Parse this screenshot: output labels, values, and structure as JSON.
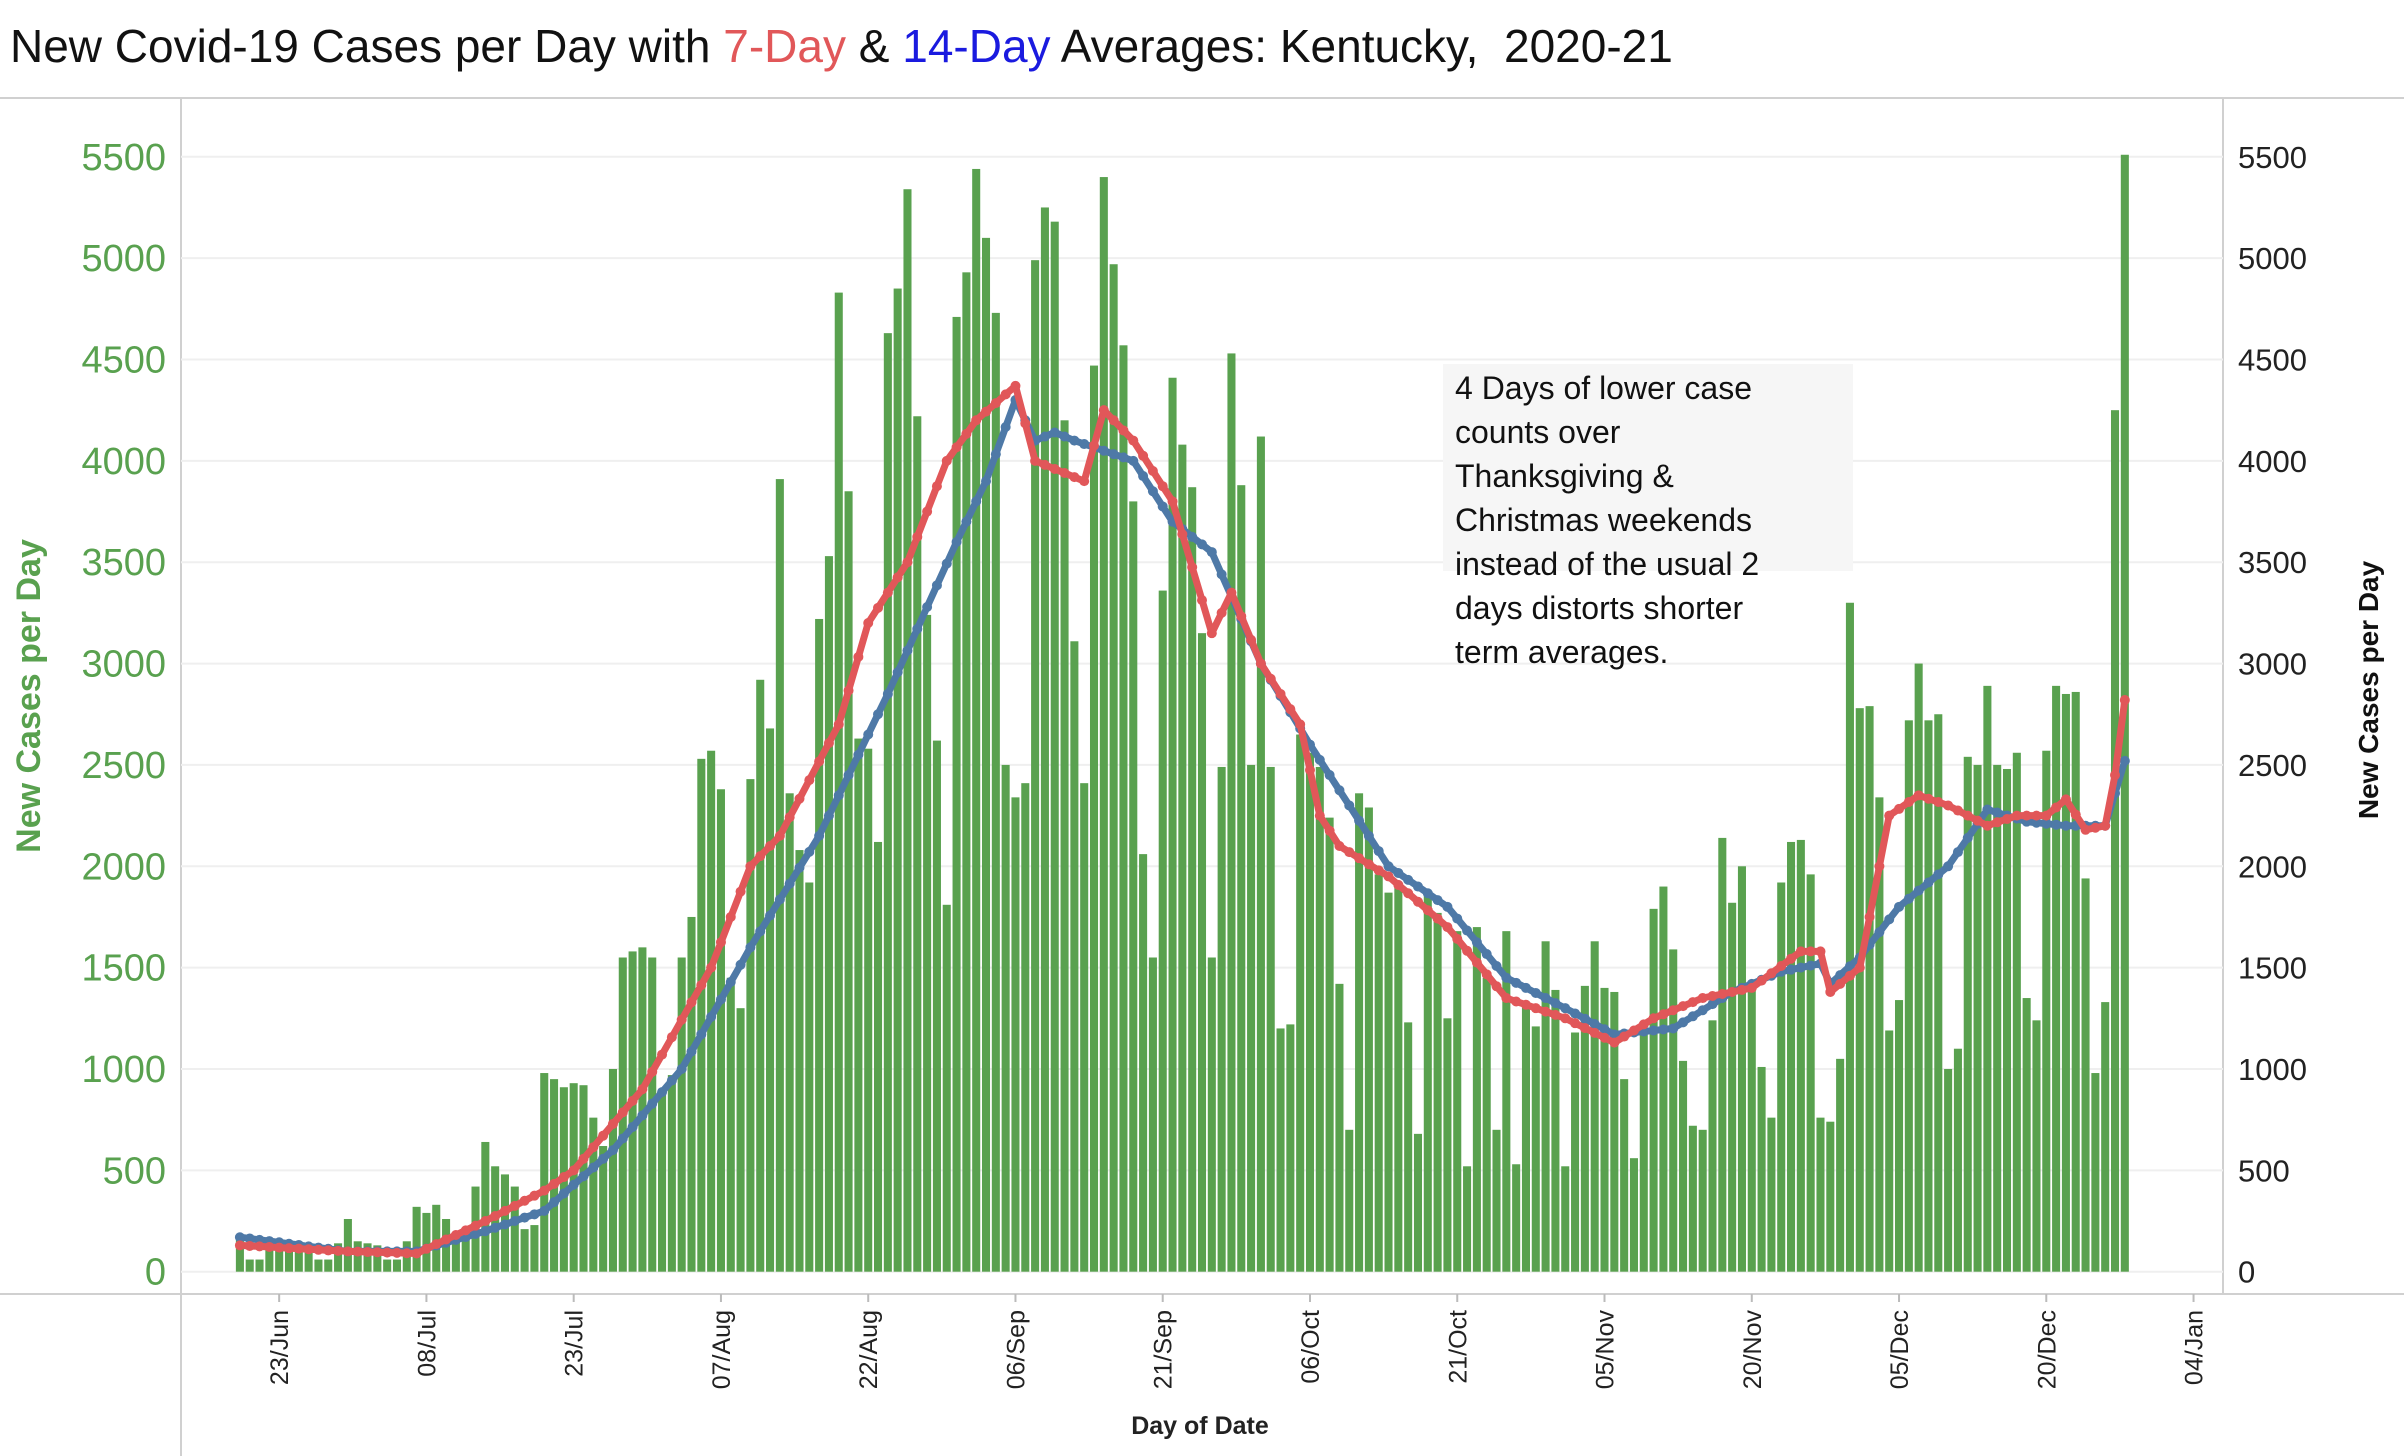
{
  "chart_data": {
    "type": "bar",
    "title_parts": [
      "New Covid-19 Cases per Day with ",
      " & ",
      " Averages: Kentucky,  2020-21"
    ],
    "ylabel": "New Cases per Day",
    "y2label": "New Cases per Day",
    "xlabel": "Day of Date",
    "annotation": [
      "4 Days of lower case",
      "counts over",
      "Thanksgiving &",
      "Christmas weekends",
      "instead of the usual 2",
      "days distorts shorter",
      "term averages."
    ],
    "x": [
      "19/Jun",
      "20/Jun",
      "21/Jun",
      "22/Jun",
      "23/Jun",
      "24/Jun",
      "25/Jun",
      "26/Jun",
      "27/Jun",
      "28/Jun",
      "29/Jun",
      "30/Jun",
      "01/Jul",
      "02/Jul",
      "03/Jul",
      "04/Jul",
      "05/Jul",
      "06/Jul",
      "07/Jul",
      "08/Jul",
      "09/Jul",
      "10/Jul",
      "11/Jul",
      "12/Jul",
      "13/Jul",
      "14/Jul",
      "15/Jul",
      "16/Jul",
      "17/Jul",
      "18/Jul",
      "19/Jul",
      "20/Jul",
      "21/Jul",
      "22/Jul",
      "23/Jul",
      "24/Jul",
      "25/Jul",
      "26/Jul",
      "27/Jul",
      "28/Jul",
      "29/Jul",
      "30/Jul",
      "31/Jul",
      "01/Aug",
      "02/Aug",
      "03/Aug",
      "04/Aug",
      "05/Aug",
      "06/Aug",
      "07/Aug",
      "08/Aug",
      "09/Aug",
      "10/Aug",
      "11/Aug",
      "12/Aug",
      "13/Aug",
      "14/Aug",
      "15/Aug",
      "16/Aug",
      "17/Aug",
      "18/Aug",
      "19/Aug",
      "20/Aug",
      "21/Aug",
      "22/Aug",
      "23/Aug",
      "24/Aug",
      "25/Aug",
      "26/Aug",
      "27/Aug",
      "28/Aug",
      "29/Aug",
      "30/Aug",
      "31/Aug",
      "01/Sep",
      "02/Sep",
      "03/Sep",
      "04/Sep",
      "05/Sep",
      "06/Sep",
      "07/Sep",
      "08/Sep",
      "09/Sep",
      "10/Sep",
      "11/Sep",
      "12/Sep",
      "13/Sep",
      "14/Sep",
      "15/Sep",
      "16/Sep",
      "17/Sep",
      "18/Sep",
      "19/Sep",
      "20/Sep",
      "21/Sep",
      "22/Sep",
      "23/Sep",
      "24/Sep",
      "25/Sep",
      "26/Sep",
      "27/Sep",
      "28/Sep",
      "29/Sep",
      "30/Sep",
      "01/Oct",
      "02/Oct",
      "03/Oct",
      "04/Oct",
      "05/Oct",
      "06/Oct",
      "07/Oct",
      "08/Oct",
      "09/Oct",
      "10/Oct",
      "11/Oct",
      "12/Oct",
      "13/Oct",
      "14/Oct",
      "15/Oct",
      "16/Oct",
      "17/Oct",
      "18/Oct",
      "19/Oct",
      "20/Oct",
      "21/Oct",
      "22/Oct",
      "23/Oct",
      "24/Oct",
      "25/Oct",
      "26/Oct",
      "27/Oct",
      "28/Oct",
      "29/Oct",
      "30/Oct",
      "31/Oct",
      "01/Nov",
      "02/Nov",
      "03/Nov",
      "04/Nov",
      "05/Nov",
      "06/Nov",
      "07/Nov",
      "08/Nov",
      "09/Nov",
      "10/Nov",
      "11/Nov",
      "12/Nov",
      "13/Nov",
      "14/Nov",
      "15/Nov",
      "16/Nov",
      "17/Nov",
      "18/Nov",
      "19/Nov",
      "20/Nov",
      "21/Nov",
      "22/Nov",
      "23/Nov",
      "24/Nov",
      "25/Nov",
      "26/Nov",
      "27/Nov",
      "28/Nov",
      "29/Nov",
      "30/Nov",
      "01/Dec",
      "02/Dec",
      "03/Dec",
      "04/Dec",
      "05/Dec",
      "06/Dec",
      "07/Dec",
      "08/Dec",
      "09/Dec",
      "10/Dec",
      "11/Dec",
      "12/Dec",
      "13/Dec",
      "14/Dec",
      "15/Dec",
      "16/Dec",
      "17/Dec",
      "18/Dec",
      "19/Dec",
      "20/Dec",
      "21/Dec",
      "22/Dec",
      "23/Dec",
      "24/Dec",
      "25/Dec",
      "26/Dec",
      "27/Dec",
      "28/Dec"
    ],
    "values": [
      170,
      60,
      60,
      120,
      150,
      130,
      120,
      100,
      60,
      60,
      140,
      260,
      150,
      140,
      130,
      60,
      60,
      150,
      320,
      290,
      330,
      260,
      170,
      160,
      420,
      640,
      520,
      480,
      420,
      210,
      230,
      980,
      950,
      910,
      930,
      920,
      760,
      620,
      1000,
      1550,
      1580,
      1600,
      1550,
      900,
      970,
      1550,
      1750,
      2530,
      2570,
      2380,
      1450,
      1300,
      2430,
      2920,
      2680,
      3910,
      2360,
      2080,
      1920,
      3220,
      3530,
      4830,
      3850,
      2630,
      2580,
      2120,
      4630,
      4850,
      5340,
      4220,
      3240,
      2620,
      1810,
      4710,
      4930,
      5440,
      5100,
      4730,
      2500,
      2340,
      2410,
      4990,
      5250,
      5180,
      4200,
      3110,
      2410,
      4470,
      5400,
      4970,
      4570,
      3800,
      2060,
      1550,
      3360,
      4410,
      4080,
      3870,
      3150,
      1550,
      2490,
      4530,
      3880,
      2500,
      4120,
      2490,
      1200,
      1220,
      2650,
      2560,
      2490,
      2240,
      1420,
      700,
      2360,
      2290,
      1960,
      1870,
      1900,
      1230,
      680,
      1880,
      1770,
      1250,
      1680,
      520,
      1700,
      1450,
      700,
      1680,
      530,
      1320,
      1210,
      1630,
      1390,
      520,
      1180,
      1410,
      1630,
      1400,
      1380,
      950,
      560,
      1170,
      1790,
      1900,
      1590,
      1040,
      720,
      700,
      1240,
      2140,
      1820,
      2000,
      1420,
      1010,
      760,
      1920,
      2120,
      2130,
      1960,
      760,
      740,
      1050,
      3300,
      2780,
      2790,
      2340,
      1190,
      1340,
      2720,
      3000,
      2720,
      2750,
      1000,
      1100,
      2540,
      2500,
      2890,
      2500,
      2480,
      2560,
      1350,
      1240,
      2570,
      2890,
      2850,
      2860,
      1940,
      980,
      1330,
      4250,
      5510
    ],
    "color": "#59a14f",
    "lines": [
      {
        "name": "7-Day",
        "color": "#e15759",
        "values": [
          130,
          127,
          125,
          122,
          119,
          116,
          114,
          111,
          108,
          105,
          103,
          100,
          99,
          97,
          96,
          94,
          93,
          91,
          90,
          113,
          136,
          159,
          181,
          204,
          227,
          250,
          275,
          300,
          325,
          350,
          375,
          400,
          433,
          467,
          500,
          557,
          614,
          671,
          729,
          786,
          843,
          900,
          986,
          1071,
          1157,
          1243,
          1329,
          1414,
          1500,
          1625,
          1750,
          1875,
          2000,
          2050,
          2100,
          2150,
          2242,
          2333,
          2425,
          2517,
          2608,
          2700,
          2867,
          3033,
          3200,
          3275,
          3350,
          3425,
          3500,
          3625,
          3750,
          3875,
          4000,
          4067,
          4133,
          4200,
          4243,
          4285,
          4328,
          4370,
          4185,
          4000,
          3980,
          3960,
          3940,
          3920,
          3900,
          4075,
          4250,
          4200,
          4150,
          4100,
          4025,
          3950,
          3875,
          3800,
          3638,
          3475,
          3313,
          3150,
          3250,
          3350,
          3233,
          3117,
          3000,
          2925,
          2850,
          2775,
          2700,
          2475,
          2250,
          2175,
          2100,
          2070,
          2040,
          2010,
          1980,
          1950,
          1908,
          1867,
          1825,
          1783,
          1742,
          1700,
          1642,
          1583,
          1525,
          1467,
          1408,
          1350,
          1333,
          1317,
          1300,
          1283,
          1267,
          1250,
          1226,
          1202,
          1178,
          1154,
          1130,
          1160,
          1190,
          1220,
          1250,
          1270,
          1290,
          1310,
          1330,
          1350,
          1360,
          1370,
          1380,
          1390,
          1400,
          1436,
          1472,
          1508,
          1544,
          1580,
          1580,
          1580,
          1380,
          1420,
          1460,
          1500,
          1750,
          2000,
          2250,
          2283,
          2317,
          2350,
          2333,
          2317,
          2300,
          2275,
          2250,
          2225,
          2200,
          2217,
          2233,
          2250,
          2250,
          2250,
          2250,
          2290,
          2330,
          2255,
          2180,
          2190,
          2200,
          2450,
          2820
        ]
      },
      {
        "name": "14-Day",
        "color": "#4e79a7",
        "values": [
          170,
          164,
          157,
          151,
          145,
          138,
          132,
          125,
          119,
          113,
          106,
          100,
          100,
          100,
          100,
          100,
          100,
          100,
          100,
          114,
          129,
          143,
          157,
          171,
          186,
          200,
          217,
          233,
          250,
          267,
          283,
          300,
          343,
          386,
          429,
          471,
          514,
          557,
          600,
          657,
          714,
          771,
          829,
          886,
          943,
          1000,
          1086,
          1171,
          1257,
          1343,
          1429,
          1514,
          1600,
          1679,
          1757,
          1836,
          1914,
          1993,
          2071,
          2150,
          2250,
          2350,
          2450,
          2550,
          2650,
          2750,
          2850,
          2957,
          3064,
          3171,
          3279,
          3386,
          3493,
          3600,
          3700,
          3800,
          3900,
          4033,
          4167,
          4300,
          4200,
          4100,
          4120,
          4140,
          4120,
          4100,
          4083,
          4067,
          4050,
          4033,
          4017,
          4000,
          3925,
          3850,
          3775,
          3700,
          3663,
          3625,
          3588,
          3550,
          3440,
          3330,
          3220,
          3110,
          3000,
          2920,
          2840,
          2760,
          2680,
          2600,
          2525,
          2450,
          2375,
          2300,
          2225,
          2150,
          2075,
          2000,
          1967,
          1933,
          1900,
          1867,
          1833,
          1800,
          1742,
          1683,
          1625,
          1567,
          1508,
          1450,
          1425,
          1400,
          1375,
          1350,
          1325,
          1300,
          1274,
          1248,
          1222,
          1196,
          1170,
          1175,
          1180,
          1185,
          1190,
          1195,
          1200,
          1230,
          1260,
          1290,
          1320,
          1350,
          1380,
          1400,
          1420,
          1440,
          1460,
          1480,
          1490,
          1500,
          1510,
          1520,
          1420,
          1463,
          1507,
          1550,
          1613,
          1675,
          1738,
          1800,
          1840,
          1880,
          1920,
          1960,
          2000,
          2070,
          2140,
          2210,
          2280,
          2265,
          2250,
          2235,
          2220,
          2215,
          2210,
          2205,
          2200,
          2200,
          2200,
          2200,
          2200,
          2360,
          2520
        ]
      }
    ],
    "xlim": [
      "13/Jun",
      "07/Jan"
    ],
    "xticks": [
      "23/Jun",
      "08/Jul",
      "23/Jul",
      "07/Aug",
      "22/Aug",
      "06/Sep",
      "21/Sep",
      "06/Oct",
      "21/Oct",
      "05/Nov",
      "20/Nov",
      "05/Dec",
      "20/Dec",
      "04/Jan"
    ],
    "ylim": [
      -110,
      5790
    ],
    "yticks": [
      0,
      500,
      1000,
      1500,
      2000,
      2500,
      3000,
      3500,
      4000,
      4500,
      5000,
      5500
    ],
    "y2lim": [
      -110,
      5790
    ],
    "y2ticks": [
      0,
      500,
      1000,
      1500,
      2000,
      2500,
      3000,
      3500,
      4000,
      4500,
      5000,
      5500
    ],
    "grid": true
  }
}
